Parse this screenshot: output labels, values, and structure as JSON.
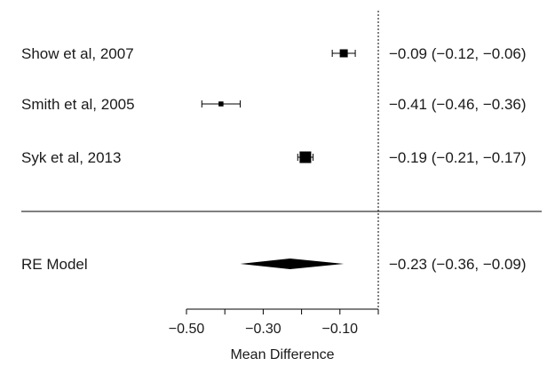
{
  "chart_data": {
    "type": "forest",
    "studies": [
      {
        "label": "Show et al, 2007",
        "estimate": -0.09,
        "lower": -0.12,
        "upper": -0.06,
        "ci_text": "−0.09 (−0.12, −0.06)",
        "weight": 0.6
      },
      {
        "label": "Smith et al, 2005",
        "estimate": -0.41,
        "lower": -0.46,
        "upper": -0.36,
        "ci_text": "−0.41 (−0.46, −0.36)",
        "weight": 0.25
      },
      {
        "label": "Syk et al, 2013",
        "estimate": -0.19,
        "lower": -0.21,
        "upper": -0.17,
        "ci_text": "−0.19 (−0.21, −0.17)",
        "weight": 1.0
      }
    ],
    "model": {
      "label": "RE Model",
      "estimate": -0.23,
      "lower": -0.36,
      "upper": -0.09,
      "ci_text": "−0.23 (−0.36, −0.09)"
    },
    "reference_line": 0,
    "xlim": [
      -0.5,
      0
    ],
    "x_ticks": [
      -0.5,
      -0.4,
      -0.3,
      -0.2,
      -0.1,
      0
    ],
    "x_tick_labels": [
      "−0.50",
      "",
      "−0.30",
      "",
      "−0.10",
      ""
    ],
    "xlabel": "Mean Difference"
  }
}
